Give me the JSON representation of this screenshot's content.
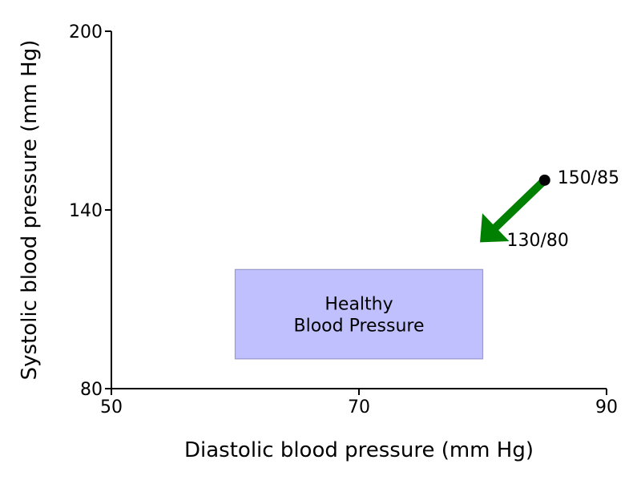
{
  "chart_data": {
    "type": "scatter",
    "xlabel": "Diastolic blood pressure (mm Hg)",
    "ylabel": "Systolic blood pressure (mm Hg)",
    "xlim": [
      50,
      90
    ],
    "ylim": [
      80,
      200
    ],
    "xticks": [
      50,
      70,
      90
    ],
    "yticks": [
      80,
      140,
      200
    ],
    "grid": false,
    "spines": [
      "left",
      "bottom"
    ],
    "region": {
      "label_lines": [
        "Healthy",
        "Blood Pressure"
      ],
      "x_range": [
        60,
        80
      ],
      "y_range": [
        90,
        120
      ],
      "fill_color": "#c0c0ff",
      "edge_color": "#9999cc"
    },
    "points": [
      {
        "x": 85,
        "y": 150,
        "label": "150/85",
        "color": "#000000"
      }
    ],
    "arrow": {
      "from": {
        "x": 85,
        "y": 150
      },
      "to": {
        "x": 80,
        "y": 130
      },
      "target_label": "130/80",
      "color": "#008000"
    }
  }
}
